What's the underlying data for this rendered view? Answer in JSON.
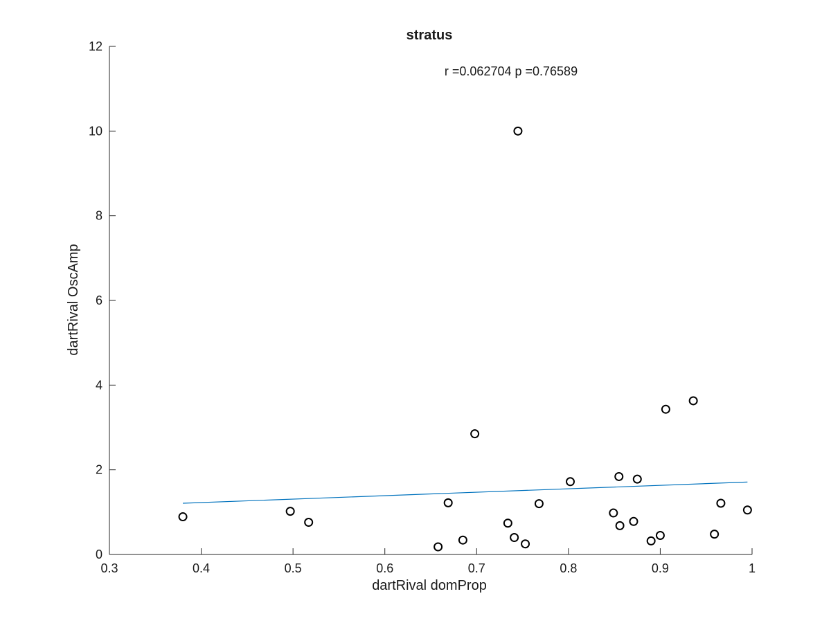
{
  "chart_data": {
    "type": "scatter",
    "title": "stratus",
    "xlabel": "dartRival domProp",
    "ylabel": "dartRival OscAmp",
    "annotation": "r =0.062704   p =0.76589",
    "xlim": [
      0.3,
      1
    ],
    "ylim": [
      0,
      12
    ],
    "xticks": [
      "0.3",
      "0.4",
      "0.5",
      "0.6",
      "0.7",
      "0.8",
      "0.9",
      "1"
    ],
    "yticks": [
      "0",
      "2",
      "4",
      "6",
      "8",
      "10",
      "12"
    ],
    "grid": false,
    "points": [
      {
        "x": 0.38,
        "y": 0.89
      },
      {
        "x": 0.497,
        "y": 1.02
      },
      {
        "x": 0.517,
        "y": 0.76
      },
      {
        "x": 0.658,
        "y": 0.18
      },
      {
        "x": 0.669,
        "y": 1.22
      },
      {
        "x": 0.685,
        "y": 0.34
      },
      {
        "x": 0.698,
        "y": 2.85
      },
      {
        "x": 0.734,
        "y": 0.74
      },
      {
        "x": 0.741,
        "y": 0.4
      },
      {
        "x": 0.745,
        "y": 10.0
      },
      {
        "x": 0.753,
        "y": 0.25
      },
      {
        "x": 0.768,
        "y": 1.2
      },
      {
        "x": 0.802,
        "y": 1.72
      },
      {
        "x": 0.849,
        "y": 0.98
      },
      {
        "x": 0.855,
        "y": 1.84
      },
      {
        "x": 0.856,
        "y": 0.68
      },
      {
        "x": 0.871,
        "y": 0.78
      },
      {
        "x": 0.875,
        "y": 1.78
      },
      {
        "x": 0.89,
        "y": 0.32
      },
      {
        "x": 0.9,
        "y": 0.45
      },
      {
        "x": 0.906,
        "y": 3.43
      },
      {
        "x": 0.936,
        "y": 3.63
      },
      {
        "x": 0.959,
        "y": 0.48
      },
      {
        "x": 0.966,
        "y": 1.21
      },
      {
        "x": 0.995,
        "y": 1.05
      }
    ],
    "fit_line": {
      "x": [
        0.38,
        0.995
      ],
      "y": [
        1.21,
        1.71
      ],
      "color": "#0072BD"
    },
    "marker_color": "#000000"
  }
}
